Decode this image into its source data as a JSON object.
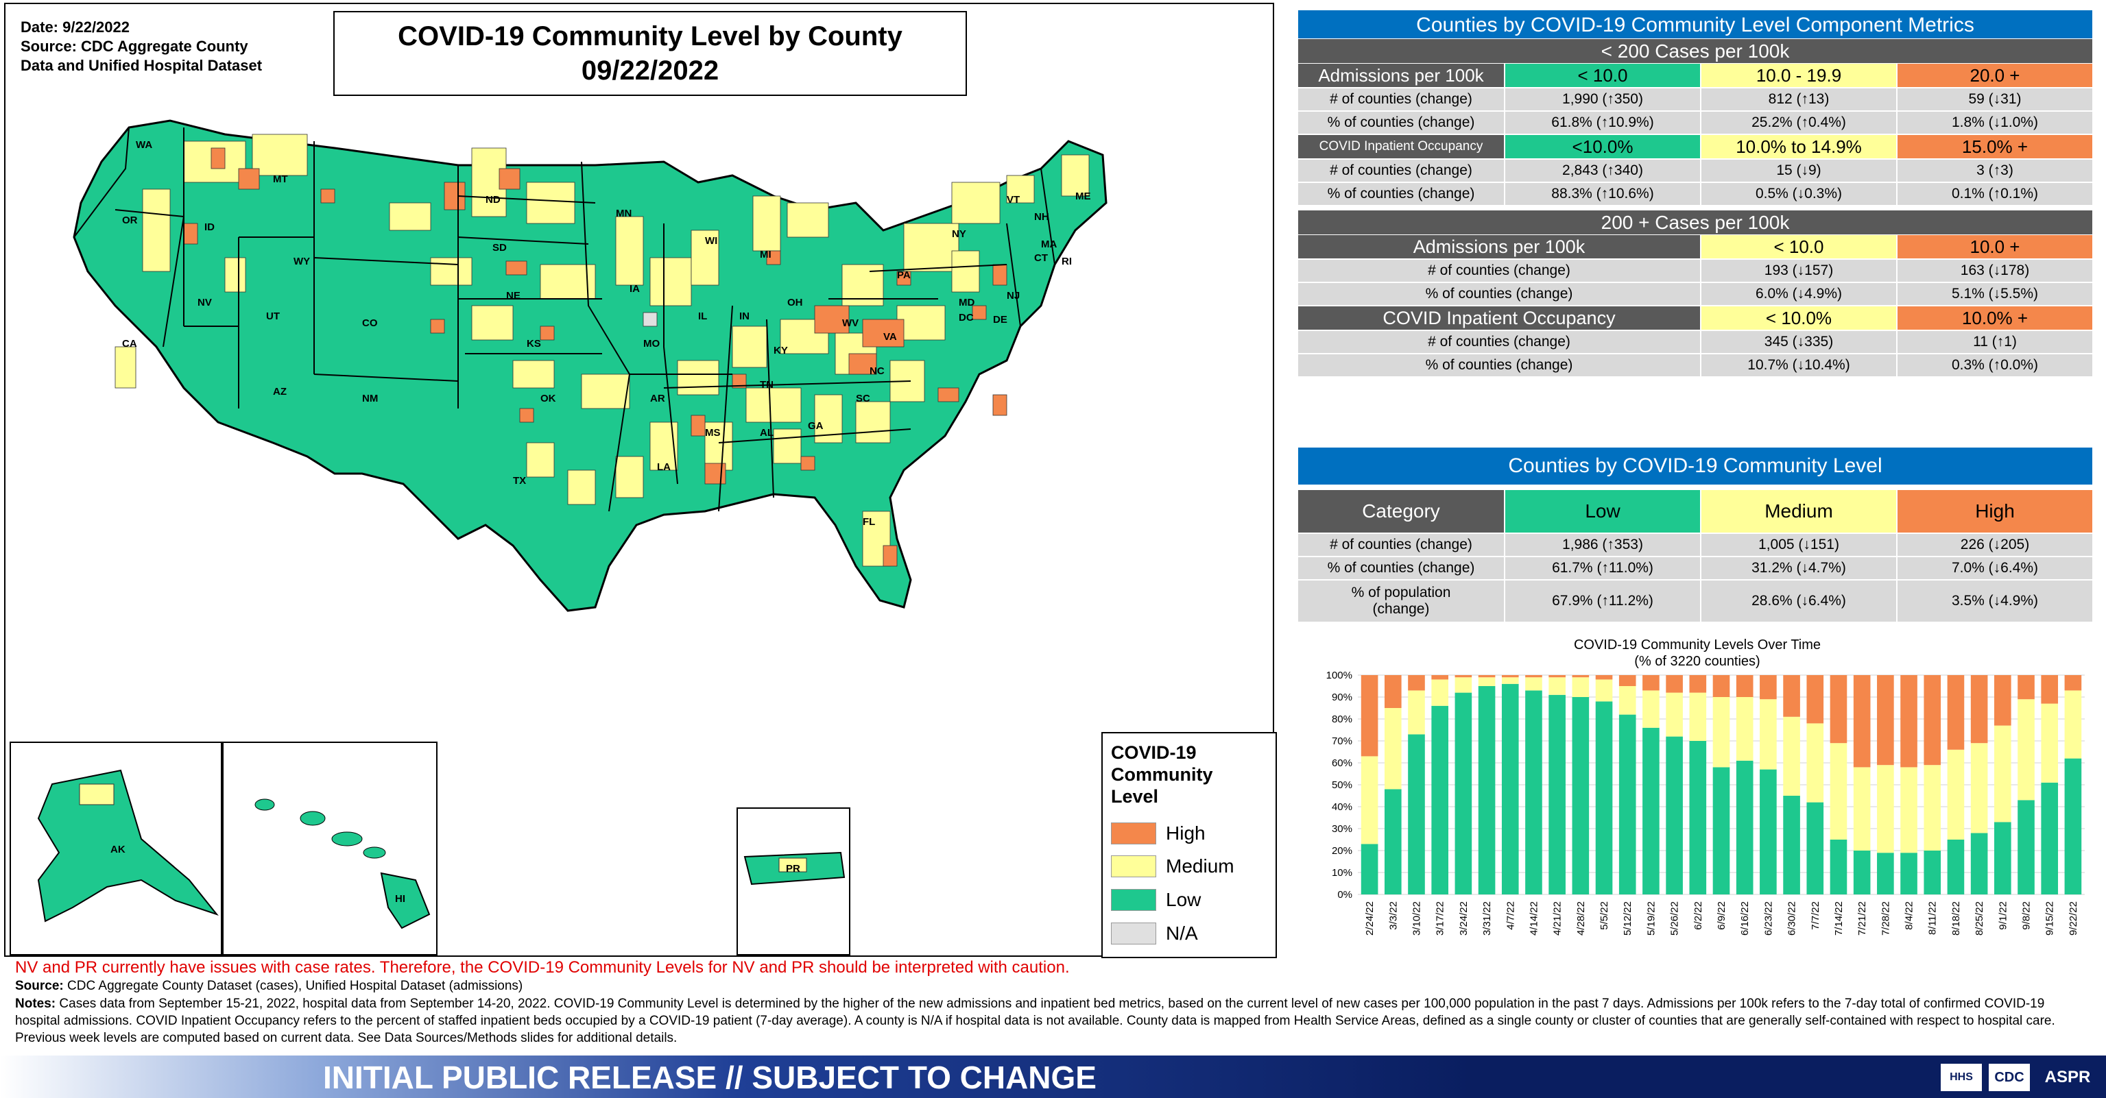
{
  "map": {
    "date_line": "Date: 9/22/2022",
    "source_line1": "Source: CDC Aggregate County",
    "source_line2": "Data and Unified Hospital Dataset",
    "title_line1": "COVID-19 Community Level by County",
    "title_line2": "09/22/2022",
    "legend_title_1": "COVID-19",
    "legend_title_2": "Community",
    "legend_title_3": "Level",
    "legend_items": [
      "High",
      "Medium",
      "Low",
      "N/A"
    ],
    "colors": {
      "high": "#f4874b",
      "medium": "#ffff99",
      "low": "#1ec88e",
      "na": "#e0e0e0"
    },
    "state_labels": [
      "WA",
      "OR",
      "CA",
      "ID",
      "NV",
      "MT",
      "WY",
      "UT",
      "AZ",
      "CO",
      "NM",
      "ND",
      "SD",
      "NE",
      "KS",
      "OK",
      "TX",
      "MN",
      "IA",
      "MO",
      "AR",
      "LA",
      "WI",
      "IL",
      "MI",
      "IN",
      "OH",
      "KY",
      "TN",
      "MS",
      "AL",
      "GA",
      "FL",
      "SC",
      "NC",
      "VA",
      "WV",
      "PA",
      "NY",
      "VT",
      "NH",
      "ME",
      "MA",
      "CT",
      "RI",
      "NJ",
      "DE",
      "MD",
      "DC",
      "AK",
      "HI",
      "PR"
    ]
  },
  "metrics_table": {
    "title": "Counties by COVID-19 Community Level Component Metrics",
    "section1": "< 200 Cases per 100k",
    "admissions_label": "Admissions per 100k",
    "adm1_cols": [
      "< 10.0",
      "10.0 - 19.9",
      "20.0 +"
    ],
    "adm1_rows": [
      {
        "label": "# of counties (change)",
        "vals": [
          "1,990 (↑350)",
          "812 (↑13)",
          "59 (↓31)"
        ]
      },
      {
        "label": "% of counties (change)",
        "vals": [
          "61.8% (↑10.9%)",
          "25.2% (↑0.4%)",
          "1.8% (↓1.0%)"
        ]
      }
    ],
    "occupancy_label": "COVID Inpatient Occupancy",
    "occ1_cols": [
      "<10.0%",
      "10.0% to 14.9%",
      "15.0% +"
    ],
    "occ1_rows": [
      {
        "label": "# of counties (change)",
        "vals": [
          "2,843 (↑340)",
          "15 (↓9)",
          "3 (↑3)"
        ]
      },
      {
        "label": "% of counties (change)",
        "vals": [
          "88.3% (↑10.6%)",
          "0.5% (↓0.3%)",
          "0.1% (↑0.1%)"
        ]
      }
    ],
    "section2": "200 + Cases per 100k",
    "adm2_cols": [
      "< 10.0",
      "10.0 +"
    ],
    "adm2_rows": [
      {
        "label": "# of counties (change)",
        "vals": [
          "193 (↓157)",
          "163 (↓178)"
        ]
      },
      {
        "label": "% of counties (change)",
        "vals": [
          "6.0% (↓4.9%)",
          "5.1% (↓5.5%)"
        ]
      }
    ],
    "occ2_cols": [
      "< 10.0%",
      "10.0% +"
    ],
    "occ2_rows": [
      {
        "label": "# of counties (change)",
        "vals": [
          "345 (↓335)",
          "11 (↑1)"
        ]
      },
      {
        "label": "% of counties (change)",
        "vals": [
          "10.7% (↓10.4%)",
          "0.3% (↑0.0%)"
        ]
      }
    ]
  },
  "level_table": {
    "title": "Counties by COVID-19 Community Level",
    "category_label": "Category",
    "cols": [
      "Low",
      "Medium",
      "High"
    ],
    "rows": [
      {
        "label": "# of counties (change)",
        "vals": [
          "1,986 (↑353)",
          "1,005 (↓151)",
          "226 (↓205)"
        ]
      },
      {
        "label": "% of counties (change)",
        "vals": [
          "61.7% (↑11.0%)",
          "31.2% (↓4.7%)",
          "7.0% (↓6.4%)"
        ]
      },
      {
        "label_line1": "% of population",
        "label_line2": "(change)",
        "vals": [
          "67.9% (↑11.2%)",
          "28.6% (↓6.4%)",
          "3.5% (↓4.9%)"
        ]
      }
    ]
  },
  "chart_data": {
    "type": "bar",
    "stacked": true,
    "title": "COVID-19 Community Levels Over Time",
    "subtitle": "(% of 3220 counties)",
    "categories": [
      "2/24/22",
      "3/3/22",
      "3/10/22",
      "3/17/22",
      "3/24/22",
      "3/31/22",
      "4/7/22",
      "4/14/22",
      "4/21/22",
      "4/28/22",
      "5/5/22",
      "5/12/22",
      "5/19/22",
      "5/26/22",
      "6/2/22",
      "6/9/22",
      "6/16/22",
      "6/23/22",
      "6/30/22",
      "7/7/22",
      "7/14/22",
      "7/21/22",
      "7/28/22",
      "8/4/22",
      "8/11/22",
      "8/18/22",
      "8/25/22",
      "9/1/22",
      "9/8/22",
      "9/15/22",
      "9/22/22"
    ],
    "series": [
      {
        "name": "Low",
        "color": "#1ec88e",
        "values": [
          23,
          48,
          73,
          86,
          92,
          95,
          96,
          93,
          91,
          90,
          88,
          82,
          76,
          72,
          70,
          58,
          61,
          57,
          45,
          42,
          25,
          20,
          19,
          19,
          20,
          25,
          28,
          33,
          43,
          51,
          62
        ]
      },
      {
        "name": "Medium",
        "color": "#ffff99",
        "values": [
          40,
          37,
          20,
          12,
          7,
          4,
          3,
          6,
          8,
          9,
          10,
          13,
          17,
          20,
          22,
          32,
          29,
          32,
          36,
          36,
          44,
          38,
          40,
          39,
          39,
          41,
          41,
          44,
          46,
          36,
          31
        ]
      },
      {
        "name": "High",
        "color": "#f4874b",
        "values": [
          37,
          15,
          7,
          2,
          1,
          1,
          1,
          1,
          1,
          1,
          2,
          5,
          7,
          8,
          8,
          10,
          10,
          11,
          19,
          22,
          31,
          42,
          41,
          42,
          41,
          34,
          31,
          23,
          11,
          13,
          7
        ]
      }
    ],
    "ylim": [
      0,
      100
    ],
    "yticks": [
      "0%",
      "10%",
      "20%",
      "30%",
      "40%",
      "50%",
      "60%",
      "70%",
      "80%",
      "90%",
      "100%"
    ]
  },
  "notes": {
    "red_note": "NV and PR currently have issues with case rates. Therefore, the COVID-19 Community Levels for NV and PR should be interpreted with caution.",
    "source_label": "Source:",
    "source_text": " CDC Aggregate County Dataset (cases), Unified Hospital Dataset (admissions)",
    "notes_label": "Notes:",
    "notes_text": " Cases data from September 15-21, 2022, hospital data from September 14-20, 2022. COVID-19 Community Level is determined by the higher of the new admissions and inpatient bed metrics, based on the current level of new cases per 100,000 population in the past 7 days. Admissions per 100k refers to the 7-day total of confirmed COVID-19 hospital admissions. COVID Inpatient Occupancy refers to the percent of staffed inpatient beds occupied by a COVID-19 patient (7-day average). A county is N/A if hospital data is not available. County data is mapped from Health Service Areas, defined as a single county or cluster of counties that are generally self-contained with respect to hospital care. Previous week levels are computed based on current data. See Data Sources/Methods slides for additional details."
  },
  "footer": {
    "text": "INITIAL PUBLIC RELEASE // SUBJECT TO CHANGE",
    "logo1": "HHS",
    "logo2": "CDC",
    "logo3": "ASPR"
  }
}
